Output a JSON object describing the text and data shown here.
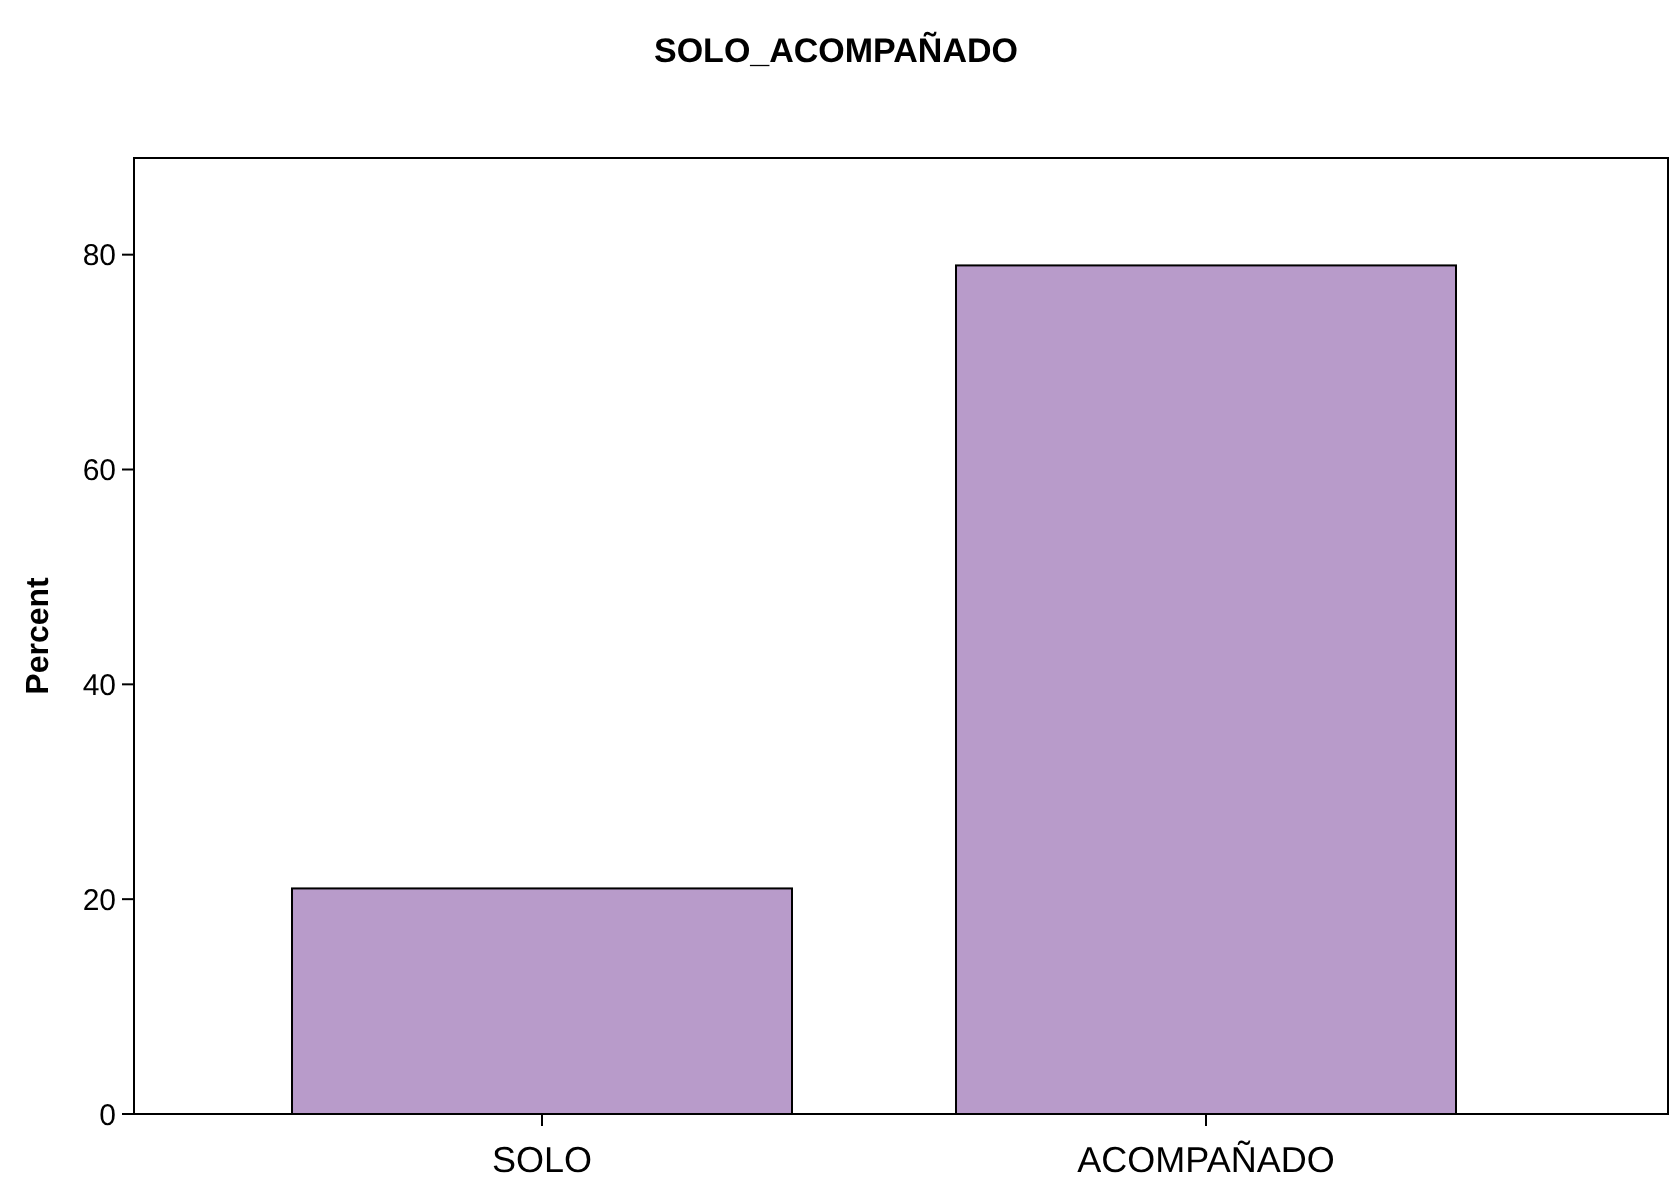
{
  "chart_data": {
    "type": "bar",
    "title": "SOLO_ACOMPAÑADO",
    "ylabel": "Percent",
    "categories": [
      "SOLO",
      "ACOMPAÑADO"
    ],
    "values": [
      21,
      79
    ],
    "color": "#b89bca",
    "ylim": [
      0,
      89
    ],
    "yticks": [
      0,
      20,
      40,
      60,
      80
    ],
    "grid": false
  }
}
